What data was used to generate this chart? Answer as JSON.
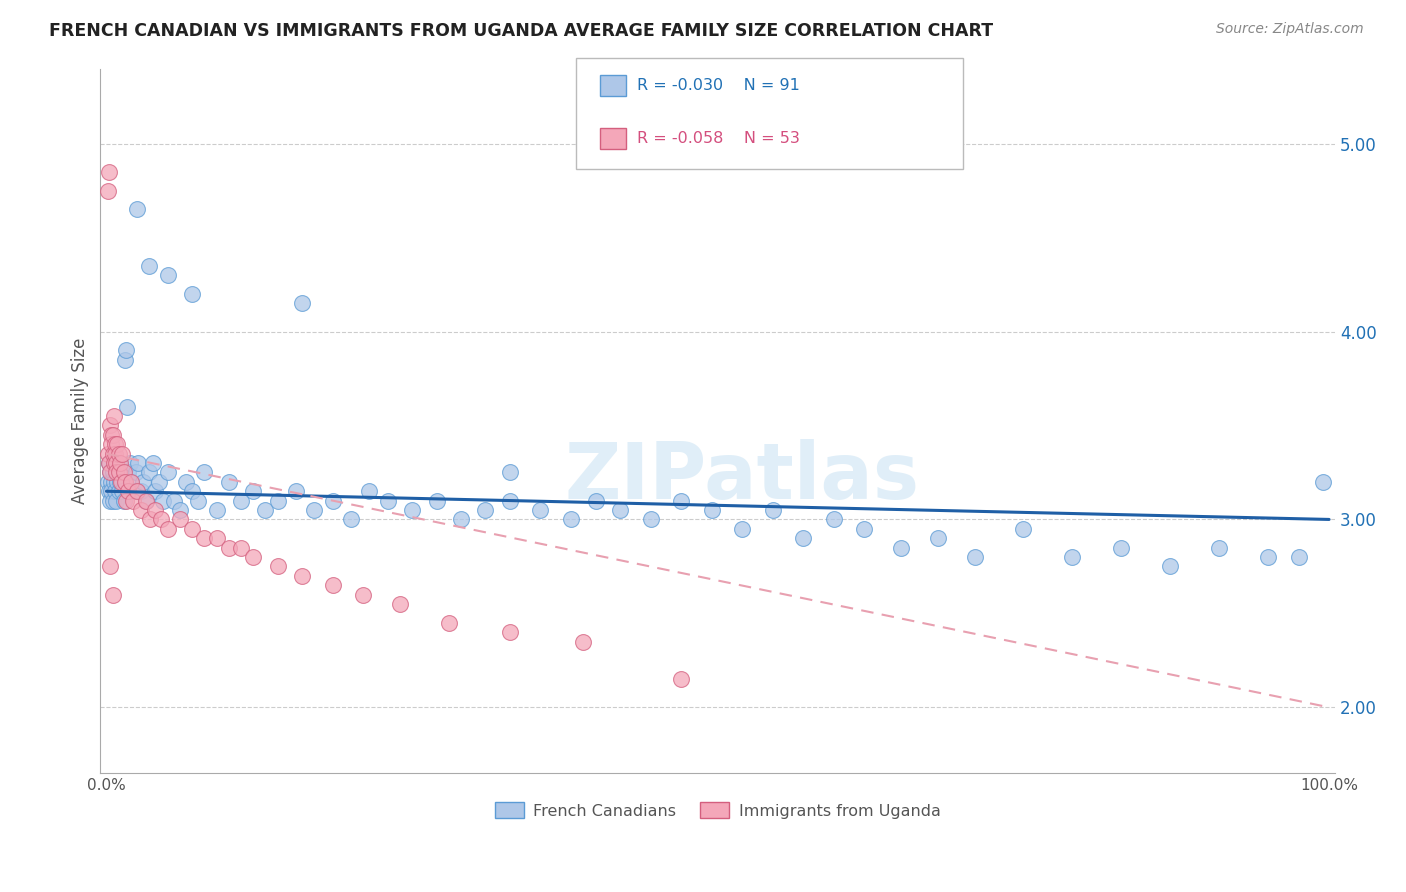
{
  "title": "FRENCH CANADIAN VS IMMIGRANTS FROM UGANDA AVERAGE FAMILY SIZE CORRELATION CHART",
  "source": "Source: ZipAtlas.com",
  "ylabel": "Average Family Size",
  "yticks": [
    2.0,
    3.0,
    4.0,
    5.0
  ],
  "ylim": [
    1.65,
    5.4
  ],
  "xlim": [
    -0.005,
    1.005
  ],
  "legend_blue_R": "R = -0.030",
  "legend_blue_N": "N = 91",
  "legend_pink_R": "R = -0.058",
  "legend_pink_N": "N = 53",
  "legend_label_blue": "French Canadians",
  "legend_label_pink": "Immigrants from Uganda",
  "blue_fill": "#aec7e8",
  "blue_edge": "#5b9bd5",
  "pink_fill": "#f4a7b9",
  "pink_edge": "#d45f7e",
  "blue_line_color": "#1f5fa6",
  "pink_line_color": "#e8a0b0",
  "watermark": "ZIPatlas",
  "blue_scatter_x": [
    0.001,
    0.002,
    0.002,
    0.003,
    0.003,
    0.004,
    0.004,
    0.005,
    0.005,
    0.006,
    0.006,
    0.007,
    0.008,
    0.008,
    0.009,
    0.01,
    0.01,
    0.011,
    0.012,
    0.013,
    0.014,
    0.015,
    0.016,
    0.017,
    0.018,
    0.019,
    0.02,
    0.022,
    0.024,
    0.026,
    0.028,
    0.03,
    0.032,
    0.035,
    0.038,
    0.04,
    0.043,
    0.046,
    0.05,
    0.055,
    0.06,
    0.065,
    0.07,
    0.075,
    0.08,
    0.09,
    0.1,
    0.11,
    0.12,
    0.13,
    0.14,
    0.155,
    0.17,
    0.185,
    0.2,
    0.215,
    0.23,
    0.25,
    0.27,
    0.29,
    0.31,
    0.33,
    0.355,
    0.38,
    0.4,
    0.42,
    0.445,
    0.47,
    0.495,
    0.52,
    0.545,
    0.57,
    0.595,
    0.62,
    0.65,
    0.68,
    0.71,
    0.75,
    0.79,
    0.83,
    0.87,
    0.91,
    0.95,
    0.975,
    0.995,
    0.025,
    0.035,
    0.05,
    0.07,
    0.16,
    0.33
  ],
  "blue_scatter_y": [
    3.2,
    3.15,
    3.3,
    3.1,
    3.25,
    3.2,
    3.15,
    3.25,
    3.1,
    3.2,
    3.3,
    3.15,
    3.25,
    3.1,
    3.2,
    3.3,
    3.15,
    3.2,
    3.25,
    3.15,
    3.1,
    3.85,
    3.9,
    3.6,
    3.25,
    3.3,
    3.2,
    3.15,
    3.25,
    3.3,
    3.15,
    3.2,
    3.1,
    3.25,
    3.3,
    3.15,
    3.2,
    3.1,
    3.25,
    3.1,
    3.05,
    3.2,
    3.15,
    3.1,
    3.25,
    3.05,
    3.2,
    3.1,
    3.15,
    3.05,
    3.1,
    3.15,
    3.05,
    3.1,
    3.0,
    3.15,
    3.1,
    3.05,
    3.1,
    3.0,
    3.05,
    3.1,
    3.05,
    3.0,
    3.1,
    3.05,
    3.0,
    3.1,
    3.05,
    2.95,
    3.05,
    2.9,
    3.0,
    2.95,
    2.85,
    2.9,
    2.8,
    2.95,
    2.8,
    2.85,
    2.75,
    2.85,
    2.8,
    2.8,
    3.2,
    4.65,
    4.35,
    4.3,
    4.2,
    4.15,
    3.25
  ],
  "pink_scatter_x": [
    0.001,
    0.001,
    0.002,
    0.002,
    0.003,
    0.003,
    0.004,
    0.004,
    0.005,
    0.005,
    0.006,
    0.006,
    0.007,
    0.007,
    0.008,
    0.008,
    0.009,
    0.01,
    0.01,
    0.011,
    0.012,
    0.013,
    0.014,
    0.015,
    0.016,
    0.018,
    0.02,
    0.022,
    0.025,
    0.028,
    0.032,
    0.036,
    0.04,
    0.045,
    0.05,
    0.06,
    0.07,
    0.08,
    0.09,
    0.1,
    0.11,
    0.12,
    0.14,
    0.16,
    0.185,
    0.21,
    0.24,
    0.28,
    0.33,
    0.39,
    0.47,
    0.003,
    0.005
  ],
  "pink_scatter_y": [
    3.35,
    4.75,
    3.3,
    4.85,
    3.5,
    3.25,
    3.45,
    3.4,
    3.35,
    3.45,
    3.55,
    3.3,
    3.4,
    3.35,
    3.3,
    3.25,
    3.4,
    3.35,
    3.25,
    3.3,
    3.2,
    3.35,
    3.25,
    3.2,
    3.1,
    3.15,
    3.2,
    3.1,
    3.15,
    3.05,
    3.1,
    3.0,
    3.05,
    3.0,
    2.95,
    3.0,
    2.95,
    2.9,
    2.9,
    2.85,
    2.85,
    2.8,
    2.75,
    2.7,
    2.65,
    2.6,
    2.55,
    2.45,
    2.4,
    2.35,
    2.15,
    2.75,
    2.6
  ],
  "blue_trend_x0": 0.0,
  "blue_trend_y0": 3.15,
  "blue_trend_x1": 1.0,
  "blue_trend_y1": 3.0,
  "pink_trend_x0": 0.0,
  "pink_trend_y0": 3.35,
  "pink_trend_x1": 1.0,
  "pink_trend_y1": 2.0
}
